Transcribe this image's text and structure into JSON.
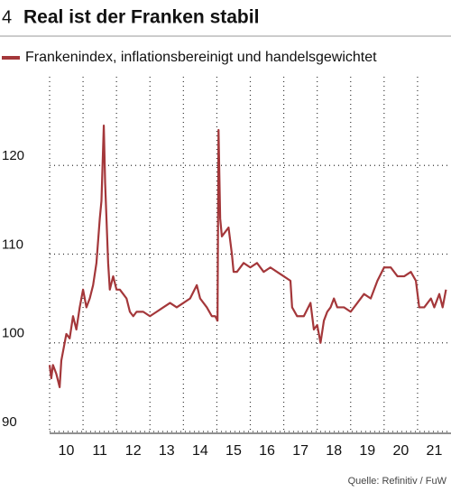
{
  "chart_data": {
    "type": "line",
    "number": "4",
    "title": "Real ist der Franken stabil",
    "source": "Quelle: Refinitiv / FuW",
    "series": [
      {
        "name": "Frankenindex, inflationsbereinigt und handelsgewichtet",
        "color": "#a4373a",
        "x": [
          2010.0,
          2010.05,
          2010.1,
          2010.2,
          2010.3,
          2010.35,
          2010.45,
          2010.5,
          2010.6,
          2010.7,
          2010.8,
          2010.9,
          2011.0,
          2011.1,
          2011.2,
          2011.3,
          2011.4,
          2011.5,
          2011.55,
          2011.62,
          2011.66,
          2011.7,
          2011.75,
          2011.8,
          2011.9,
          2012.0,
          2012.1,
          2012.2,
          2012.3,
          2012.4,
          2012.5,
          2012.6,
          2012.8,
          2013.0,
          2013.2,
          2013.4,
          2013.6,
          2013.8,
          2014.0,
          2014.2,
          2014.4,
          2014.5,
          2014.7,
          2014.85,
          2014.95,
          2015.02,
          2015.05,
          2015.1,
          2015.15,
          2015.25,
          2015.35,
          2015.45,
          2015.5,
          2015.6,
          2015.8,
          2016.0,
          2016.2,
          2016.4,
          2016.6,
          2016.8,
          2017.0,
          2017.2,
          2017.25,
          2017.4,
          2017.6,
          2017.8,
          2017.9,
          2018.0,
          2018.1,
          2018.2,
          2018.3,
          2018.4,
          2018.5,
          2018.6,
          2018.8,
          2019.0,
          2019.2,
          2019.4,
          2019.6,
          2019.8,
          2020.0,
          2020.2,
          2020.4,
          2020.6,
          2020.8,
          2020.95,
          2021.05,
          2021.2,
          2021.4,
          2021.5,
          2021.65,
          2021.75,
          2021.85
        ],
        "values": [
          97.5,
          96,
          97.5,
          96.5,
          95,
          98,
          100,
          101,
          100.5,
          103,
          101.5,
          104,
          106,
          104,
          105,
          106.5,
          109,
          114,
          116,
          124.5,
          118,
          114,
          109,
          106,
          107.5,
          106,
          106,
          105.5,
          105,
          103.5,
          103,
          103.5,
          103.5,
          103,
          103.5,
          104,
          104.5,
          104,
          104.5,
          105,
          106.5,
          105,
          104,
          103,
          103,
          102.5,
          124,
          114,
          112,
          112.5,
          113,
          110,
          108,
          108,
          109,
          108.5,
          109,
          108,
          108.5,
          108,
          107.5,
          107,
          104,
          103,
          103,
          104.5,
          101.5,
          102,
          100,
          102.5,
          103.5,
          104,
          105,
          104,
          104,
          103.5,
          104.5,
          105.5,
          105,
          107,
          108.5,
          108.5,
          107.5,
          107.5,
          108,
          107,
          104,
          104,
          105,
          104,
          105.5,
          104,
          106
        ]
      }
    ],
    "xlim": [
      2010,
      2022
    ],
    "xticks": [
      {
        "value": 2010.5,
        "label": "10"
      },
      {
        "value": 2011.5,
        "label": "11"
      },
      {
        "value": 2012.5,
        "label": "12"
      },
      {
        "value": 2013.5,
        "label": "13"
      },
      {
        "value": 2014.5,
        "label": "14"
      },
      {
        "value": 2015.5,
        "label": "15"
      },
      {
        "value": 2016.5,
        "label": "16"
      },
      {
        "value": 2017.5,
        "label": "17"
      },
      {
        "value": 2018.5,
        "label": "18"
      },
      {
        "value": 2019.5,
        "label": "19"
      },
      {
        "value": 2020.5,
        "label": "20"
      },
      {
        "value": 2021.5,
        "label": "21"
      }
    ],
    "xgrid": [
      2010,
      2011,
      2012,
      2013,
      2014,
      2015,
      2016,
      2017,
      2018,
      2019,
      2020,
      2021
    ],
    "ylim": [
      90,
      130
    ],
    "yticks": [
      90,
      100,
      110,
      120
    ],
    "grid": true
  }
}
